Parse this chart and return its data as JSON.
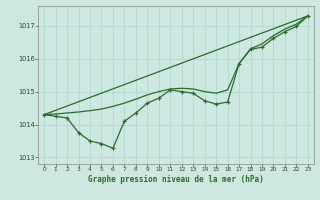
{
  "background_color": "#cce8e0",
  "grid_color": "#b0d8d0",
  "line_color": "#2d6a2d",
  "xlabel": "Graphe pression niveau de la mer (hPa)",
  "xlim": [
    -0.5,
    23.5
  ],
  "ylim": [
    1012.8,
    1017.6
  ],
  "yticks": [
    1013,
    1014,
    1015,
    1016,
    1017
  ],
  "xticks": [
    0,
    1,
    2,
    3,
    4,
    5,
    6,
    7,
    8,
    9,
    10,
    11,
    12,
    13,
    14,
    15,
    16,
    17,
    18,
    19,
    20,
    21,
    22,
    23
  ],
  "trend_x": [
    0,
    23
  ],
  "trend_y": [
    1014.3,
    1017.3
  ],
  "smooth_x": [
    0,
    1,
    2,
    3,
    4,
    5,
    6,
    7,
    8,
    9,
    10,
    11,
    12,
    13,
    14,
    15,
    16,
    17,
    18,
    19,
    20,
    21,
    22,
    23
  ],
  "smooth_y": [
    1014.3,
    1014.32,
    1014.35,
    1014.38,
    1014.42,
    1014.47,
    1014.55,
    1014.65,
    1014.77,
    1014.9,
    1015.0,
    1015.08,
    1015.1,
    1015.08,
    1015.0,
    1014.95,
    1015.05,
    1015.85,
    1016.3,
    1016.45,
    1016.7,
    1016.9,
    1017.05,
    1017.3
  ],
  "jagged_x": [
    0,
    1,
    2,
    3,
    4,
    5,
    6,
    7,
    8,
    9,
    10,
    11,
    12,
    13,
    14,
    15,
    16,
    17,
    18,
    19,
    20,
    21,
    22,
    23
  ],
  "jagged_y": [
    1014.3,
    1014.25,
    1014.2,
    1013.75,
    1013.5,
    1013.42,
    1013.28,
    1014.1,
    1014.35,
    1014.65,
    1014.8,
    1015.05,
    1015.0,
    1014.95,
    1014.72,
    1014.62,
    1014.68,
    1015.85,
    1016.28,
    1016.35,
    1016.62,
    1016.82,
    1016.98,
    1017.3
  ]
}
